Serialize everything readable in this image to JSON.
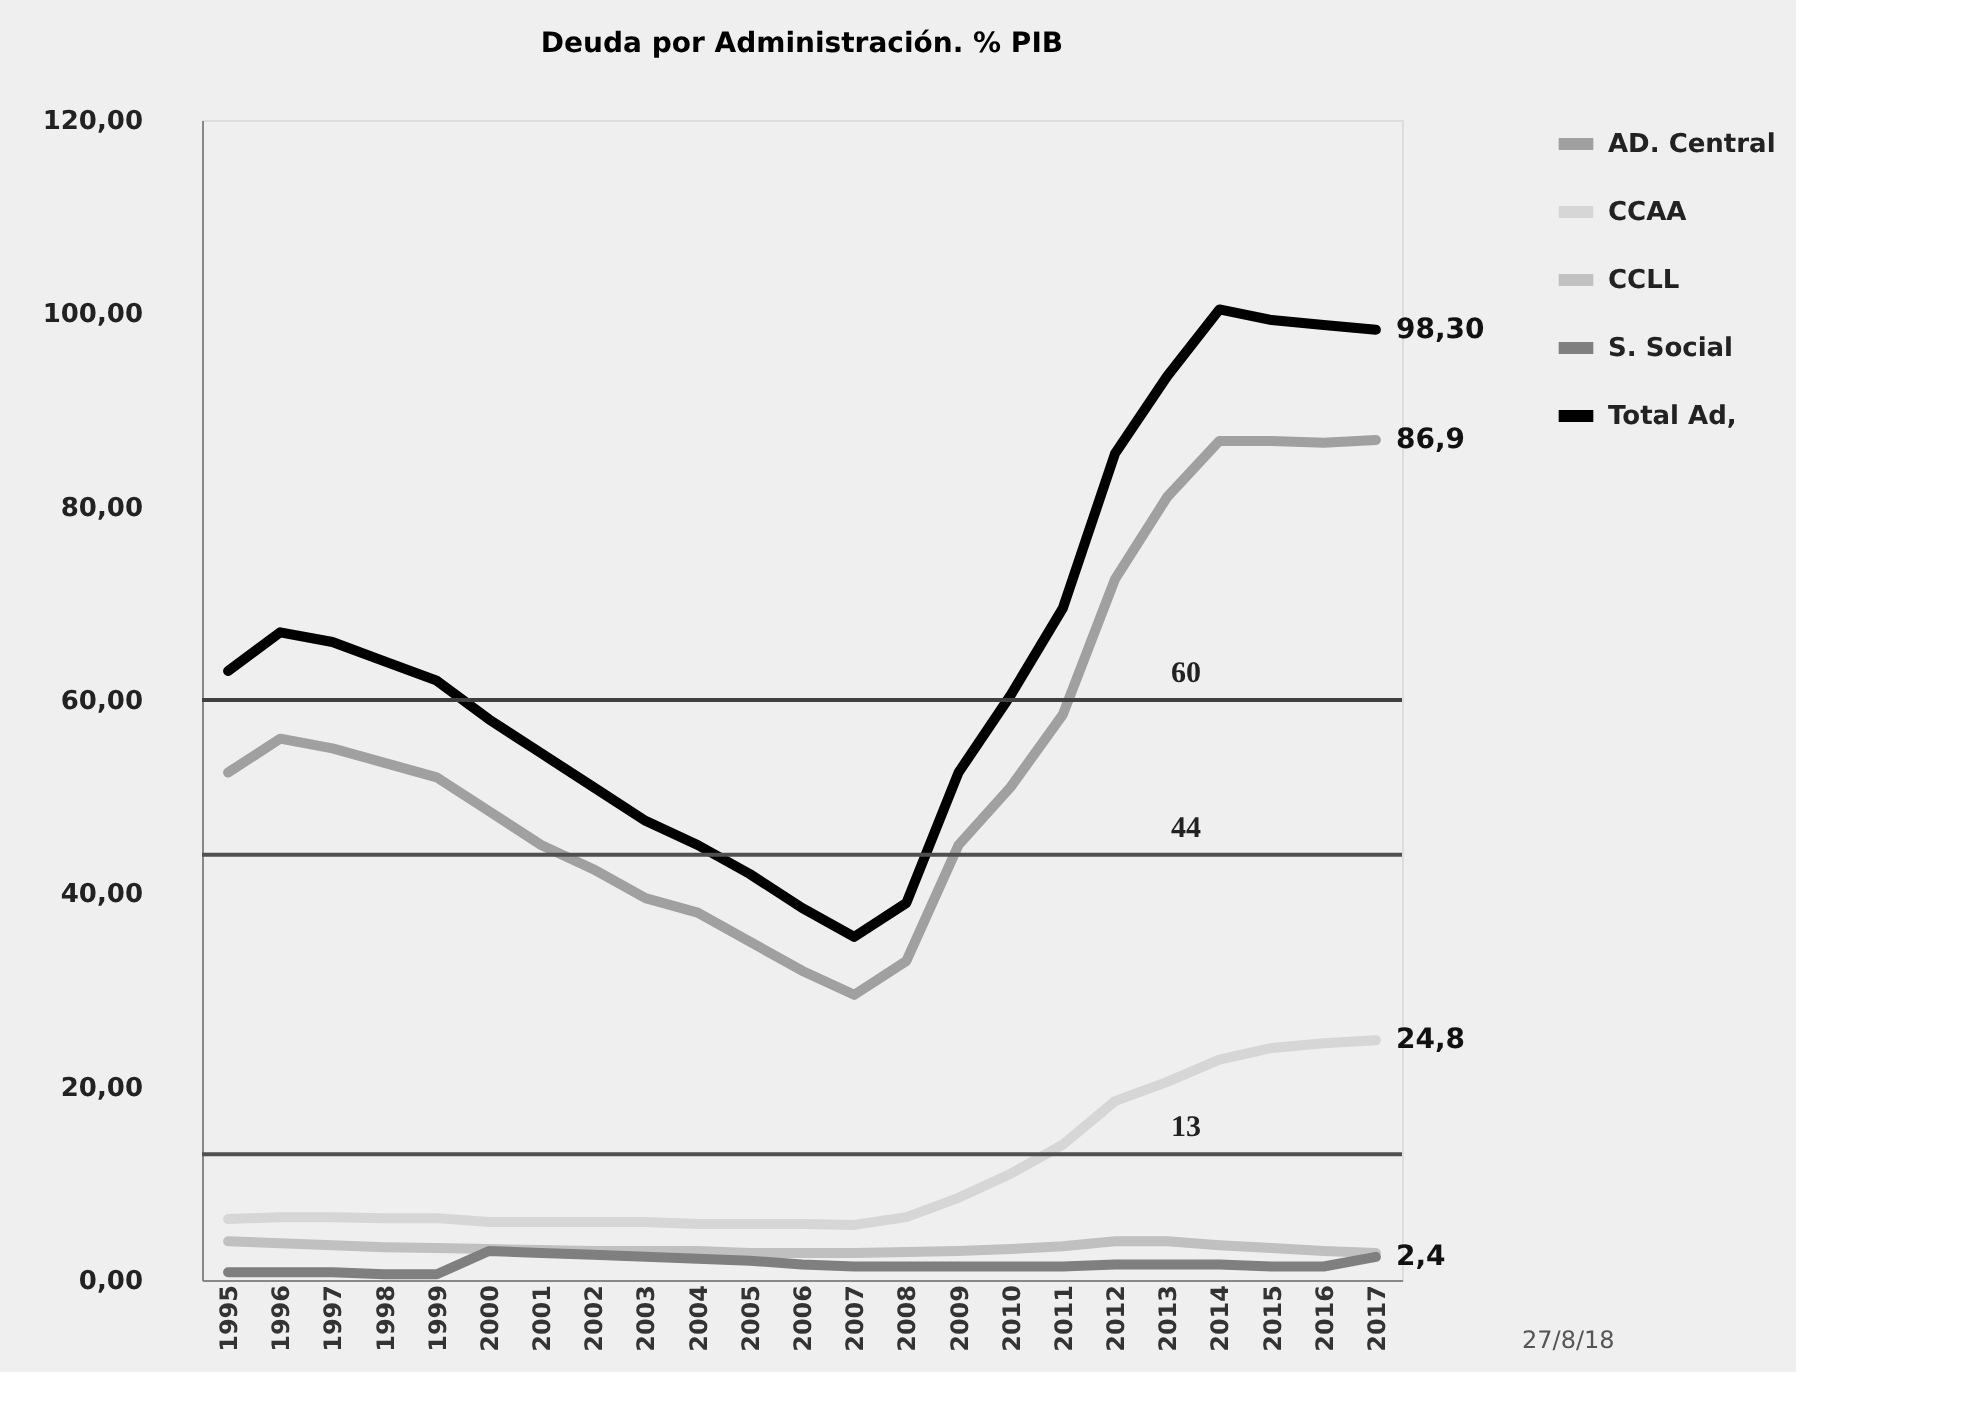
{
  "chart_data": {
    "type": "line",
    "title": "Deuda por Administración. % PIB",
    "categories": [
      "1995",
      "1996",
      "1997",
      "1998",
      "1999",
      "2000",
      "2001",
      "2002",
      "2003",
      "2004",
      "2005",
      "2006",
      "2007",
      "2008",
      "2009",
      "2010",
      "2011",
      "2012",
      "2013",
      "2014",
      "2015",
      "2016",
      "2017"
    ],
    "series": [
      {
        "name": "AD. Central",
        "color": "#a0a0a0",
        "values": [
          52.5,
          56,
          55,
          53.5,
          52,
          48.5,
          45,
          42.5,
          39.5,
          38,
          35,
          32,
          29.5,
          33,
          45,
          51,
          58.5,
          72.5,
          81,
          86.8,
          86.8,
          86.6,
          86.9
        ]
      },
      {
        "name": "CCAA",
        "color": "#d6d6d6",
        "values": [
          6.3,
          6.5,
          6.5,
          6.4,
          6.4,
          6.0,
          6.0,
          6.0,
          6.0,
          5.8,
          5.8,
          5.8,
          5.7,
          6.5,
          8.5,
          11,
          14,
          18.5,
          20.5,
          22.8,
          24,
          24.5,
          24.8
        ]
      },
      {
        "name": "CCLL",
        "color": "#c0c0c0",
        "values": [
          4,
          3.8,
          3.6,
          3.4,
          3.3,
          3.2,
          3.1,
          3.0,
          3.0,
          3.0,
          2.8,
          2.8,
          2.8,
          2.9,
          3.0,
          3.2,
          3.5,
          4.0,
          4.0,
          3.6,
          3.3,
          3.0,
          2.8
        ]
      },
      {
        "name": "S. Social",
        "color": "#7f7f7f",
        "values": [
          0.8,
          0.8,
          0.8,
          0.6,
          0.6,
          3.0,
          2.8,
          2.6,
          2.4,
          2.2,
          2.0,
          1.6,
          1.4,
          1.4,
          1.4,
          1.4,
          1.4,
          1.6,
          1.6,
          1.6,
          1.4,
          1.4,
          2.4
        ]
      },
      {
        "name": "Total Ad,",
        "color": "#000000",
        "values": [
          63,
          67,
          66,
          64,
          62,
          58,
          54.5,
          51,
          47.5,
          45,
          42,
          38.5,
          35.5,
          39,
          52.5,
          60.5,
          69.5,
          85.5,
          93.5,
          100.4,
          99.3,
          98.8,
          98.3
        ]
      }
    ],
    "ylim": [
      0,
      120
    ],
    "yticks": [
      {
        "value": 0,
        "label": "0,00"
      },
      {
        "value": 20,
        "label": "20,00"
      },
      {
        "value": 40,
        "label": "40,00"
      },
      {
        "value": 60,
        "label": "60,00"
      },
      {
        "value": 80,
        "label": "80,00"
      },
      {
        "value": 100,
        "label": "100,00"
      },
      {
        "value": 120,
        "label": "120,00"
      }
    ],
    "ref_lines": [
      {
        "axis": "y",
        "value": 60,
        "label": "60",
        "color": "#404040"
      },
      {
        "axis": "y",
        "value": 44,
        "label": "44",
        "color": "#505050"
      },
      {
        "axis": "y",
        "value": 13,
        "label": "13",
        "color": "#505050"
      }
    ],
    "annotations": [
      {
        "text": "98,30",
        "x": "2017",
        "y": 98.3
      },
      {
        "text": "86,9",
        "x": "2017",
        "y": 86.9
      },
      {
        "text": "24,8",
        "x": "2017",
        "y": 24.8
      },
      {
        "text": "2,4",
        "x": "2017",
        "y": 2.4
      },
      "27/8/18"
    ],
    "legend": "right",
    "grid": false
  }
}
